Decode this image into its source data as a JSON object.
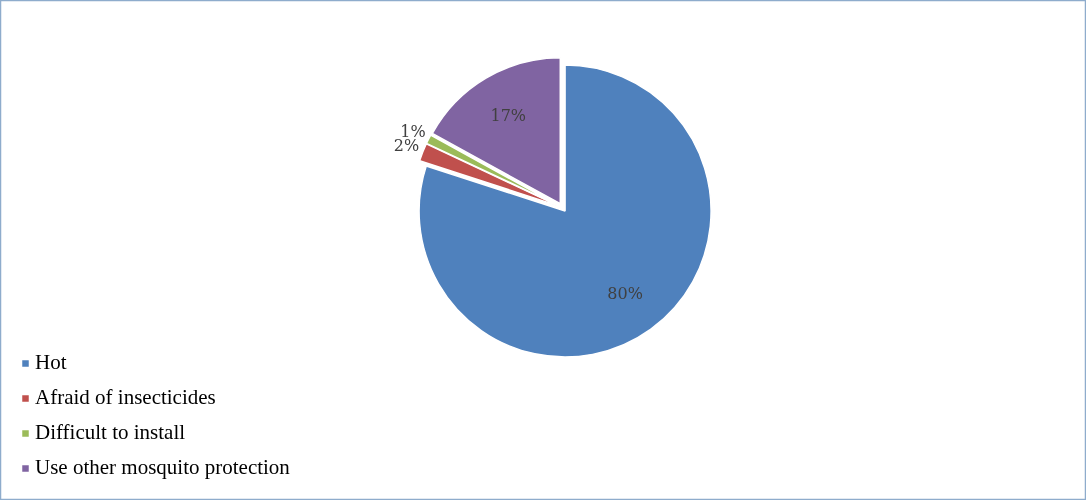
{
  "chart_data": {
    "type": "pie",
    "categories": [
      "Hot",
      "Afraid of insecticides",
      "Difficult to install",
      "Use other mosquito protection"
    ],
    "values": [
      80,
      2,
      1,
      17
    ],
    "colors": [
      "#4f81bd",
      "#c0504d",
      "#9bbb59",
      "#8064a2"
    ],
    "value_labels": [
      "80%",
      "2%",
      "1%",
      "17%"
    ],
    "legend": "bottom left"
  }
}
